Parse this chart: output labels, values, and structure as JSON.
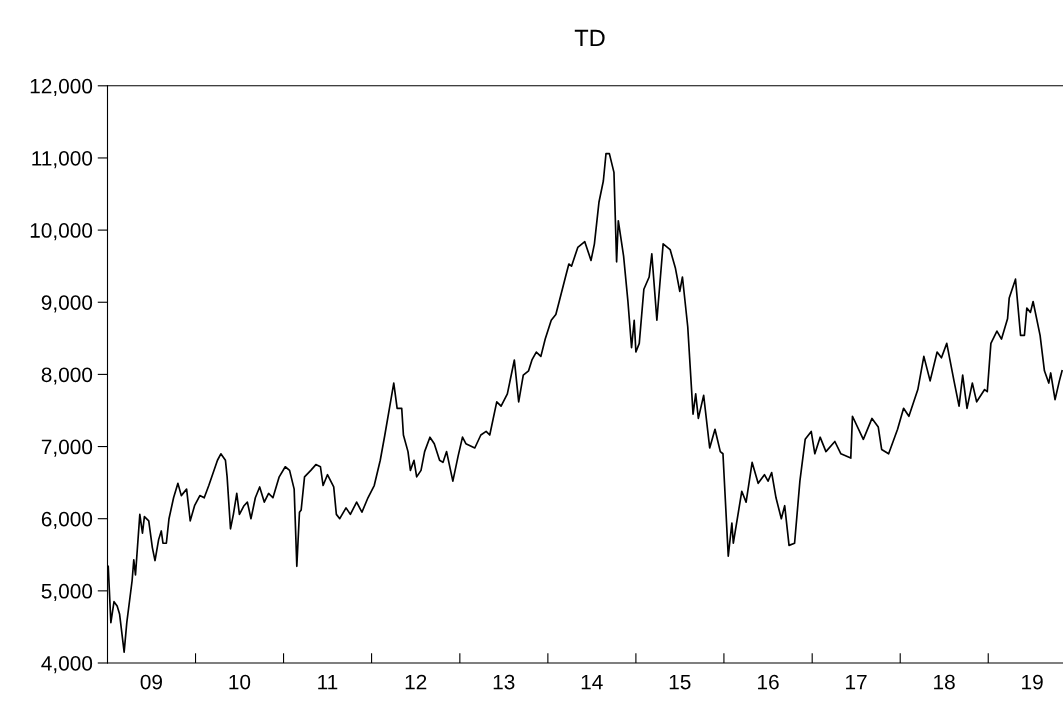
{
  "chart_data": {
    "type": "line",
    "title": "TD",
    "xlim": [
      "2009-01-01",
      "2019-11-07"
    ],
    "ylim": [
      4000,
      12000
    ],
    "yticks": [
      {
        "value": 4000,
        "label": "4,000"
      },
      {
        "value": 5000,
        "label": "5,000"
      },
      {
        "value": 6000,
        "label": "6,000"
      },
      {
        "value": 7000,
        "label": "7,000"
      },
      {
        "value": 8000,
        "label": "8,000"
      },
      {
        "value": 9000,
        "label": "9,000"
      },
      {
        "value": 10000,
        "label": "10,000"
      },
      {
        "value": 11000,
        "label": "11,000"
      },
      {
        "value": 12000,
        "label": "12,000"
      }
    ],
    "xticks": [
      {
        "value": "2010-01-01",
        "label": null
      },
      {
        "value": "2011-01-01",
        "label": null
      },
      {
        "value": "2012-01-01",
        "label": null
      },
      {
        "value": "2013-01-01",
        "label": null
      },
      {
        "value": "2014-01-01",
        "label": null
      },
      {
        "value": "2015-01-01",
        "label": null
      },
      {
        "value": "2016-01-01",
        "label": null
      },
      {
        "value": "2017-01-01",
        "label": null
      },
      {
        "value": "2018-01-01",
        "label": null
      },
      {
        "value": "2019-01-01",
        "label": null
      },
      {
        "value": "2009-07-02",
        "label": "09"
      },
      {
        "value": "2010-07-02",
        "label": "10"
      },
      {
        "value": "2011-07-02",
        "label": "11"
      },
      {
        "value": "2012-07-02",
        "label": "12"
      },
      {
        "value": "2013-07-02",
        "label": "13"
      },
      {
        "value": "2014-07-02",
        "label": "14"
      },
      {
        "value": "2015-07-02",
        "label": "15"
      },
      {
        "value": "2016-07-02",
        "label": "16"
      },
      {
        "value": "2017-07-02",
        "label": "17"
      },
      {
        "value": "2018-07-02",
        "label": "18"
      },
      {
        "value": "2019-07-02",
        "label": "19"
      }
    ],
    "marker": "none",
    "line_style": "solid",
    "series": [
      {
        "color": "#000000",
        "x": [
          "2009-01-04",
          "2009-01-15",
          "2009-01-28",
          "2009-02-10",
          "2009-02-20",
          "2009-03-11",
          "2009-03-22",
          "2009-04-13",
          "2009-04-20",
          "2009-04-27",
          "2009-05-15",
          "2009-05-26",
          "2009-06-03",
          "2009-06-21",
          "2009-07-06",
          "2009-07-17",
          "2009-08-01",
          "2009-08-12",
          "2009-08-19",
          "2009-09-02",
          "2009-09-13",
          "2009-10-02",
          "2009-10-20",
          "2009-11-03",
          "2009-11-25",
          "2009-12-10",
          "2009-12-28",
          "2010-01-19",
          "2010-02-06",
          "2010-02-25",
          "2010-04-02",
          "2010-04-16",
          "2010-05-05",
          "2010-05-12",
          "2010-05-26",
          "2010-06-07",
          "2010-06-21",
          "2010-07-02",
          "2010-07-21",
          "2010-08-04",
          "2010-08-19",
          "2010-09-06",
          "2010-09-24",
          "2010-10-13",
          "2010-10-31",
          "2010-11-18",
          "2010-12-14",
          "2011-01-08",
          "2011-01-26",
          "2011-02-14",
          "2011-02-25",
          "2011-03-08",
          "2011-03-15",
          "2011-03-29",
          "2011-04-24",
          "2011-05-15",
          "2011-06-03",
          "2011-06-14",
          "2011-07-02",
          "2011-07-28",
          "2011-08-08",
          "2011-08-22",
          "2011-09-17",
          "2011-10-05",
          "2011-10-31",
          "2011-11-22",
          "2011-12-17",
          "2012-01-12",
          "2012-02-06",
          "2012-02-25",
          "2012-03-15",
          "2012-04-02",
          "2012-04-16",
          "2012-05-05",
          "2012-05-12",
          "2012-05-31",
          "2012-06-10",
          "2012-06-25",
          "2012-07-06",
          "2012-07-24",
          "2012-08-08",
          "2012-08-30",
          "2012-09-17",
          "2012-10-09",
          "2012-10-23",
          "2012-11-07",
          "2012-12-03",
          "2012-12-25",
          "2013-01-12",
          "2013-01-26",
          "2013-03-04",
          "2013-03-29",
          "2013-04-20",
          "2013-05-05",
          "2013-06-03",
          "2013-06-21",
          "2013-07-17",
          "2013-08-15",
          "2013-09-02",
          "2013-09-21",
          "2013-10-13",
          "2013-10-27",
          "2013-11-14",
          "2013-12-03",
          "2013-12-21",
          "2014-01-15",
          "2014-02-03",
          "2014-02-17",
          "2014-03-15",
          "2014-03-29",
          "2014-04-09",
          "2014-05-05",
          "2014-06-03",
          "2014-06-29",
          "2014-07-13",
          "2014-08-01",
          "2014-08-19",
          "2014-08-30",
          "2014-09-13",
          "2014-10-02",
          "2014-10-13",
          "2014-10-20",
          "2014-11-11",
          "2014-11-29",
          "2014-12-14",
          "2014-12-25",
          "2015-01-01",
          "2015-01-15",
          "2015-02-03",
          "2015-02-25",
          "2015-03-08",
          "2015-03-29",
          "2015-04-24",
          "2015-05-23",
          "2015-06-14",
          "2015-07-02",
          "2015-07-13",
          "2015-08-04",
          "2015-08-26",
          "2015-09-06",
          "2015-09-17",
          "2015-10-09",
          "2015-11-03",
          "2015-11-25",
          "2015-12-17",
          "2015-12-28",
          "2016-01-19",
          "2016-02-03",
          "2016-02-09",
          "2016-03-15",
          "2016-04-02",
          "2016-04-27",
          "2016-05-22",
          "2016-06-17",
          "2016-07-02",
          "2016-07-17",
          "2016-08-04",
          "2016-08-26",
          "2016-09-09",
          "2016-09-27",
          "2016-10-20",
          "2016-11-11",
          "2016-12-03",
          "2016-12-28",
          "2017-01-12",
          "2017-02-03",
          "2017-02-27",
          "2017-04-05",
          "2017-04-30",
          "2017-06-10",
          "2017-06-17",
          "2017-08-01",
          "2017-09-06",
          "2017-10-02",
          "2017-10-16",
          "2017-11-14",
          "2017-12-21",
          "2018-01-15",
          "2018-02-06",
          "2018-03-15",
          "2018-04-09",
          "2018-05-05",
          "2018-06-03",
          "2018-06-21",
          "2018-07-13",
          "2018-08-12",
          "2018-09-02",
          "2018-09-17",
          "2018-10-05",
          "2018-10-27",
          "2018-11-14",
          "2018-12-17",
          "2018-12-28",
          "2019-01-12",
          "2019-02-06",
          "2019-02-25",
          "2019-03-22",
          "2019-03-29",
          "2019-04-24",
          "2019-05-15",
          "2019-05-31",
          "2019-06-10",
          "2019-06-25",
          "2019-07-06",
          "2019-08-04",
          "2019-08-22",
          "2019-09-09",
          "2019-09-17",
          "2019-10-05",
          "2019-10-23",
          "2019-11-03"
        ],
        "values": [
          5340,
          4560,
          4850,
          4790,
          4680,
          4150,
          4560,
          5140,
          5430,
          5220,
          6060,
          5800,
          6030,
          5970,
          5600,
          5420,
          5710,
          5830,
          5660,
          5660,
          6000,
          6290,
          6490,
          6320,
          6410,
          5970,
          6180,
          6320,
          6290,
          6460,
          6810,
          6900,
          6810,
          6580,
          5860,
          6060,
          6350,
          6060,
          6180,
          6230,
          6000,
          6290,
          6440,
          6230,
          6350,
          6290,
          6580,
          6720,
          6670,
          6410,
          5340,
          6090,
          6120,
          6580,
          6670,
          6750,
          6720,
          6460,
          6610,
          6440,
          6060,
          6000,
          6150,
          6060,
          6230,
          6090,
          6290,
          6460,
          6810,
          7160,
          7530,
          7880,
          7530,
          7530,
          7160,
          6930,
          6670,
          6810,
          6580,
          6670,
          6930,
          7130,
          7040,
          6810,
          6780,
          6930,
          6520,
          6870,
          7130,
          7040,
          6980,
          7160,
          7210,
          7160,
          7620,
          7560,
          7730,
          8200,
          7620,
          7990,
          8050,
          8200,
          8310,
          8250,
          8490,
          8750,
          8830,
          9010,
          9350,
          9530,
          9500,
          9760,
          9840,
          9580,
          9810,
          10390,
          10680,
          11060,
          11060,
          10800,
          9560,
          10130,
          9640,
          9010,
          8370,
          8750,
          8310,
          8430,
          9180,
          9350,
          9670,
          8750,
          9810,
          9730,
          9470,
          9150,
          9350,
          8660,
          7450,
          7730,
          7390,
          7710,
          6980,
          7240,
          6930,
          6900,
          5480,
          5940,
          5660,
          6380,
          6230,
          6780,
          6490,
          6610,
          6520,
          6640,
          6290,
          6000,
          6180,
          5630,
          5660,
          6520,
          7100,
          7210,
          6900,
          7130,
          6930,
          7070,
          6900,
          6840,
          7420,
          7100,
          7390,
          7270,
          6960,
          6900,
          7240,
          7530,
          7420,
          7790,
          8250,
          7910,
          8310,
          8230,
          8430,
          7910,
          7560,
          7990,
          7530,
          7880,
          7620,
          7790,
          7760,
          8430,
          8600,
          8490,
          8770,
          9060,
          9320,
          8540,
          8540,
          8920,
          8860,
          9010,
          8540,
          8050,
          7880,
          8020,
          7650,
          7910,
          8050
        ]
      }
    ]
  }
}
